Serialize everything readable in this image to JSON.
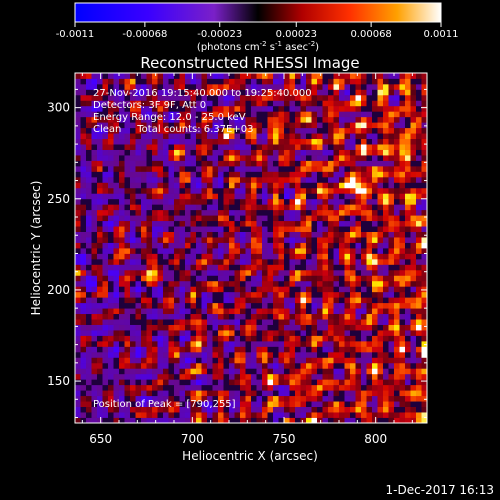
{
  "colorbar": {
    "ticks": [
      "-0.0011",
      "-0.00068",
      "-0.00023",
      "0.00023",
      "0.00068",
      "0.0011"
    ],
    "min": -0.0011,
    "max": 0.0011,
    "units_main": "(photons cm",
    "units_exp1": "-2",
    "units_mid": " s",
    "units_exp2": "-1",
    "units_mid2": " asec",
    "units_exp3": "-2",
    "units_end": ")"
  },
  "annotation": {
    "line1": "27-Nov-2016 19:15:40.000 to 19:25:40.000",
    "line2": "Detectors: 3F 9F, Att 0",
    "line3": "Energy Range: 12.0 - 25.0 keV",
    "line4": "Clean     Total counts: 6.37E+03",
    "peak": "Position of Peak = [790,255]"
  },
  "footer": {
    "timestamp": "1-Dec-2017 16:13"
  },
  "chart_data": {
    "type": "heatmap",
    "title": "Reconstructed RHESSI Image",
    "xlabel": "Heliocentric X (arcsec)",
    "ylabel": "Heliocentric Y (arcsec)",
    "xlim": [
      636,
      828
    ],
    "ylim": [
      127,
      319
    ],
    "xticks": [
      650,
      700,
      750,
      800
    ],
    "yticks": [
      150,
      200,
      250,
      300
    ],
    "grid": false,
    "colormap": "hot-with-blue-negative",
    "bright_sources": [
      {
        "x": 790,
        "y": 255,
        "v": 1.0
      },
      {
        "x": 676,
        "y": 209,
        "v": 0.85
      },
      {
        "x": 660,
        "y": 222,
        "v": 0.5
      },
      {
        "x": 744,
        "y": 285,
        "v": 0.55
      },
      {
        "x": 812,
        "y": 275,
        "v": 0.5
      },
      {
        "x": 700,
        "y": 175,
        "v": 0.45
      },
      {
        "x": 760,
        "y": 148,
        "v": 0.5
      }
    ],
    "peak": [
      790,
      255
    ]
  }
}
